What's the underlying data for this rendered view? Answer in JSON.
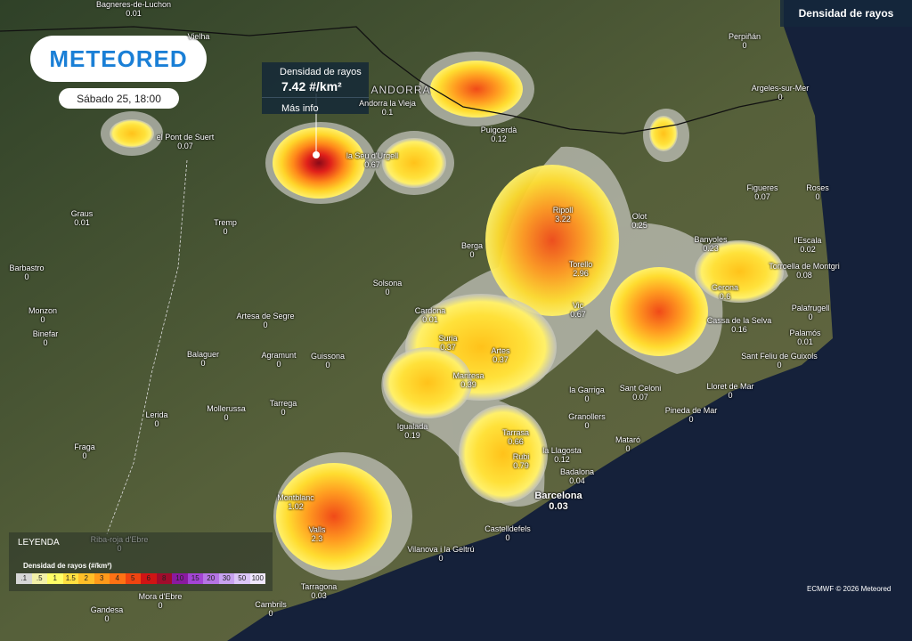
{
  "header": {
    "logo": "METEORED",
    "datetime": "Sábado 25, 18:00",
    "layer": "Densidad de rayos"
  },
  "popup": {
    "title": "Densidad de rayos",
    "value": "7.42 #/km²",
    "link": "Más info"
  },
  "region_labels": [
    "ANDORRA"
  ],
  "places": [
    {
      "name": "Bagneres-de-Luchon",
      "value": "0.01"
    },
    {
      "name": "Vielha"
    },
    {
      "name": "Andorra la Vieja",
      "value": "0.1"
    },
    {
      "name": "Puigcerdà",
      "value": "0.12"
    },
    {
      "name": "Perpiñán",
      "value": "0"
    },
    {
      "name": "Argeles-sur-Mer",
      "value": "0"
    },
    {
      "name": "el Pont de Suert",
      "value": "0.07"
    },
    {
      "name": "la Seu d'Urgell",
      "value": "0.67"
    },
    {
      "name": "Figueres",
      "value": "0.07"
    },
    {
      "name": "Roses",
      "value": "0"
    },
    {
      "name": "Graus",
      "value": "0.01"
    },
    {
      "name": "Ripoll",
      "value": "3.22"
    },
    {
      "name": "Olot",
      "value": "0.25"
    },
    {
      "name": "Tremp",
      "value": "0"
    },
    {
      "name": "Berga",
      "value": "0"
    },
    {
      "name": "Banyoles",
      "value": "0.23"
    },
    {
      "name": "l'Escala",
      "value": "0.02"
    },
    {
      "name": "Barbastro",
      "value": "0"
    },
    {
      "name": "Torello",
      "value": "2.96"
    },
    {
      "name": "Torroella de Montgri",
      "value": "0.08"
    },
    {
      "name": "Solsona",
      "value": "0"
    },
    {
      "name": "Gerona",
      "value": "0.6"
    },
    {
      "name": "Monzon",
      "value": "0"
    },
    {
      "name": "Artesa de Segre",
      "value": "0"
    },
    {
      "name": "Cardona",
      "value": "0.01"
    },
    {
      "name": "Vic",
      "value": "0.67"
    },
    {
      "name": "Palafrugell",
      "value": "0"
    },
    {
      "name": "Cassa de la Selva",
      "value": "0.16"
    },
    {
      "name": "Binefar",
      "value": "0"
    },
    {
      "name": "Palamós",
      "value": "0.01"
    },
    {
      "name": "Suria",
      "value": "0.37"
    },
    {
      "name": "Artes",
      "value": "0.37"
    },
    {
      "name": "Balaguer",
      "value": "0"
    },
    {
      "name": "Agramunt",
      "value": "0"
    },
    {
      "name": "Guissona",
      "value": "0"
    },
    {
      "name": "Sant Feliu de Guixols",
      "value": "0"
    },
    {
      "name": "Manresa",
      "value": "0.39"
    },
    {
      "name": "Lloret de Mar",
      "value": "0"
    },
    {
      "name": "la Garriga",
      "value": "0"
    },
    {
      "name": "Sant Celoni",
      "value": "0.07"
    },
    {
      "name": "Tarrega",
      "value": "0"
    },
    {
      "name": "Mollerussa",
      "value": "0"
    },
    {
      "name": "Pineda de Mar",
      "value": "0"
    },
    {
      "name": "Lerida",
      "value": "0"
    },
    {
      "name": "Granollers",
      "value": "0"
    },
    {
      "name": "Igualada",
      "value": "0.19"
    },
    {
      "name": "Tarrasa",
      "value": "0.66"
    },
    {
      "name": "Mataró",
      "value": "0"
    },
    {
      "name": "Fraga",
      "value": "0"
    },
    {
      "name": "la Llagosta",
      "value": "0.12"
    },
    {
      "name": "Rubi",
      "value": "0.79"
    },
    {
      "name": "Badalona",
      "value": "0.04"
    },
    {
      "name": "Barcelona",
      "value": "0.03"
    },
    {
      "name": "Montblanc",
      "value": "1.02"
    },
    {
      "name": "Valls",
      "value": "2.3"
    },
    {
      "name": "Castelldefels",
      "value": "0"
    },
    {
      "name": "Riba-roja d'Ebre",
      "value": "0"
    },
    {
      "name": "Vilanova i la Geltrú",
      "value": "0"
    },
    {
      "name": "Tarragona",
      "value": "0.03"
    },
    {
      "name": "Mora d'Ebre",
      "value": "0"
    },
    {
      "name": "Cambrils",
      "value": "0"
    },
    {
      "name": "Gandesa",
      "value": "0"
    }
  ],
  "legend": {
    "title": "LEYENDA",
    "subtitle": "Densidad de rayos (#/km²)",
    "steps": [
      ".1",
      ".5",
      "1",
      "1.5",
      "2",
      "3",
      "4",
      "5",
      "6",
      "8",
      "10",
      "15",
      "20",
      "30",
      "50",
      "100"
    ]
  },
  "credit": "ECMWF © 2026 Meteored"
}
